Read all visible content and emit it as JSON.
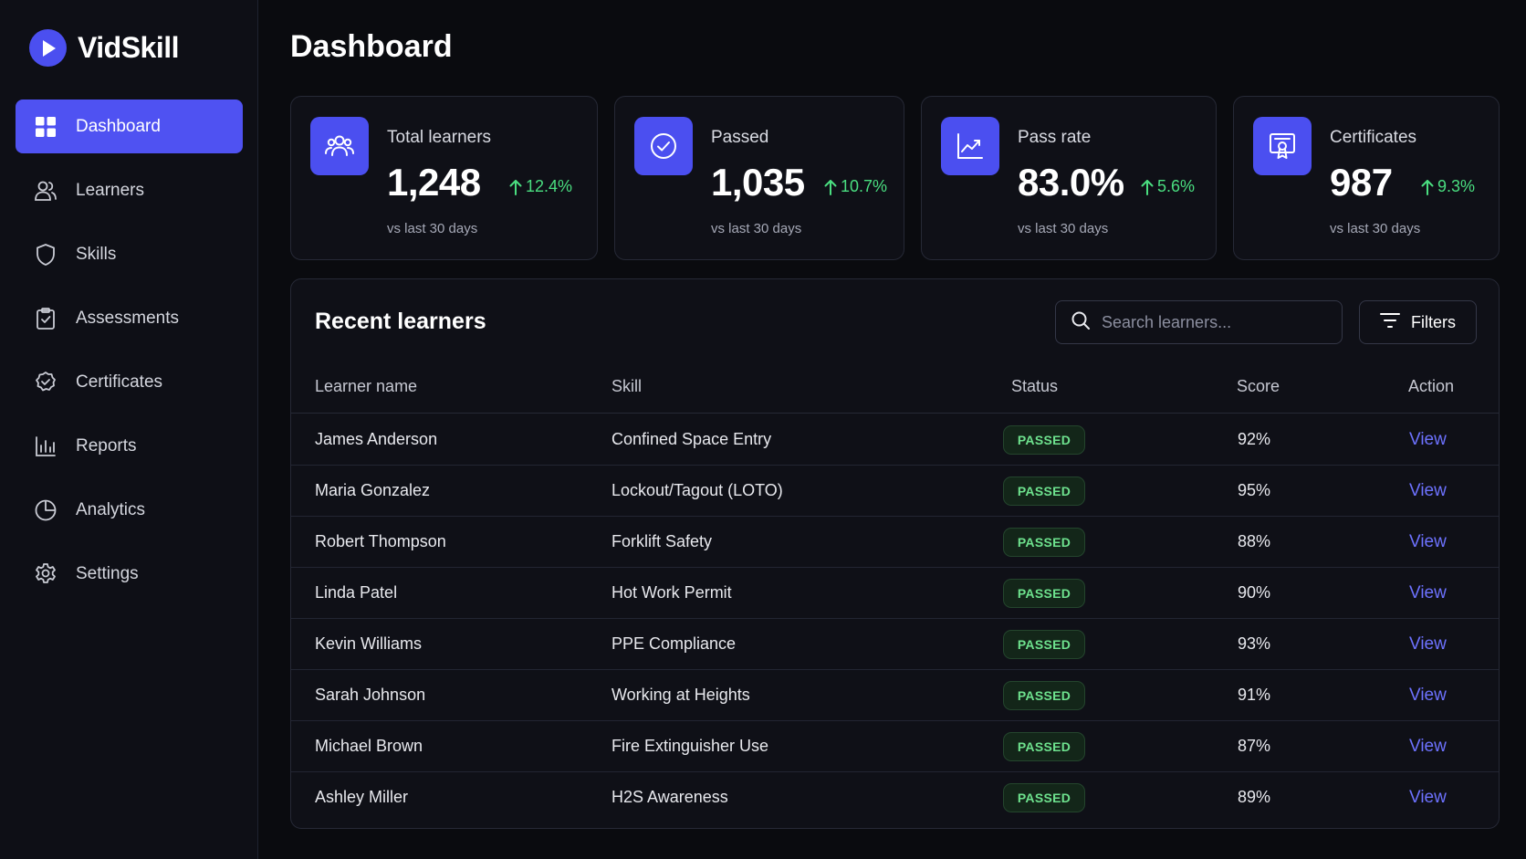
{
  "brand": {
    "name": "VidSkill",
    "icon": "play-icon",
    "accent": "#4f52f2"
  },
  "sidebar": {
    "items": [
      {
        "label": "Dashboard",
        "icon": "grid-icon",
        "active": true
      },
      {
        "label": "Learners",
        "icon": "users-icon",
        "active": false
      },
      {
        "label": "Skills",
        "icon": "shield-icon",
        "active": false
      },
      {
        "label": "Assessments",
        "icon": "clipboard-check-icon",
        "active": false
      },
      {
        "label": "Certificates",
        "icon": "badge-icon",
        "active": false
      },
      {
        "label": "Reports",
        "icon": "bar-chart-icon",
        "active": false
      },
      {
        "label": "Analytics",
        "icon": "pie-chart-icon",
        "active": false
      },
      {
        "label": "Settings",
        "icon": "gear-icon",
        "active": false
      }
    ]
  },
  "page": {
    "title": "Dashboard"
  },
  "stats": [
    {
      "label": "Total learners",
      "value": "1,248",
      "delta": "12.4%",
      "sub": "vs last 30 days",
      "icon": "users-icon"
    },
    {
      "label": "Passed",
      "value": "1,035",
      "delta": "10.7%",
      "sub": "vs last 30 days",
      "icon": "check-circle-icon"
    },
    {
      "label": "Pass rate",
      "value": "83.0%",
      "delta": "5.6%",
      "sub": "vs last 30 days",
      "icon": "trend-up-icon"
    },
    {
      "label": "Certificates",
      "value": "987",
      "delta": "9.3%",
      "sub": "vs last 30 days",
      "icon": "certificate-icon"
    }
  ],
  "recent": {
    "title": "Recent learners",
    "search_placeholder": "Search learners...",
    "filters_label": "Filters",
    "columns": [
      "Learner name",
      "Skill",
      "Status",
      "Score",
      "Action"
    ],
    "rows": [
      {
        "name": "James Anderson",
        "skill": "Confined Space Entry",
        "status": "PASSED",
        "score": "92%",
        "action": "View"
      },
      {
        "name": "Maria Gonzalez",
        "skill": "Lockout/Tagout (LOTO)",
        "status": "PASSED",
        "score": "95%",
        "action": "View"
      },
      {
        "name": "Robert Thompson",
        "skill": "Forklift Safety",
        "status": "PASSED",
        "score": "88%",
        "action": "View"
      },
      {
        "name": "Linda Patel",
        "skill": "Hot Work Permit",
        "status": "PASSED",
        "score": "90%",
        "action": "View"
      },
      {
        "name": "Kevin Williams",
        "skill": "PPE Compliance",
        "status": "PASSED",
        "score": "93%",
        "action": "View"
      },
      {
        "name": "Sarah Johnson",
        "skill": "Working at Heights",
        "status": "PASSED",
        "score": "91%",
        "action": "View"
      },
      {
        "name": "Michael Brown",
        "skill": "Fire Extinguisher Use",
        "status": "PASSED",
        "score": "87%",
        "action": "View"
      },
      {
        "name": "Ashley Miller",
        "skill": "H2S Awareness",
        "status": "PASSED",
        "score": "89%",
        "action": "View"
      }
    ]
  }
}
